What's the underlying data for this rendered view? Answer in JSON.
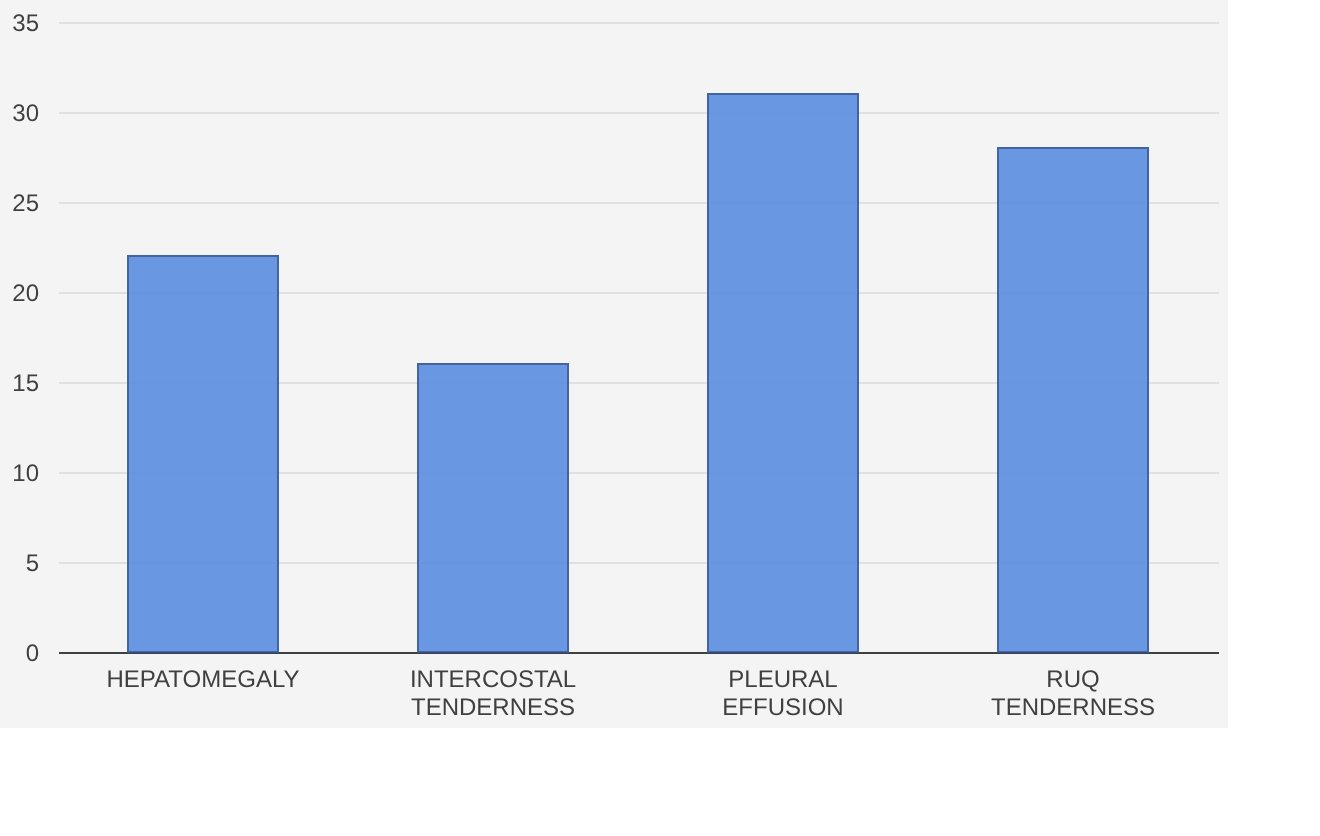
{
  "chart_data": {
    "type": "bar",
    "categories": [
      "HEPATOMEGALY",
      "INTERCOSTAL TENDERNESS",
      "PLEURAL EFFUSION",
      "RUQ TENDERNESS"
    ],
    "values": [
      22,
      16,
      31,
      28
    ],
    "color": "#5b8ee0",
    "ylim": [
      0,
      35
    ],
    "yticks": [
      0,
      5,
      10,
      15,
      20,
      25,
      30,
      35
    ],
    "grid": "y"
  }
}
